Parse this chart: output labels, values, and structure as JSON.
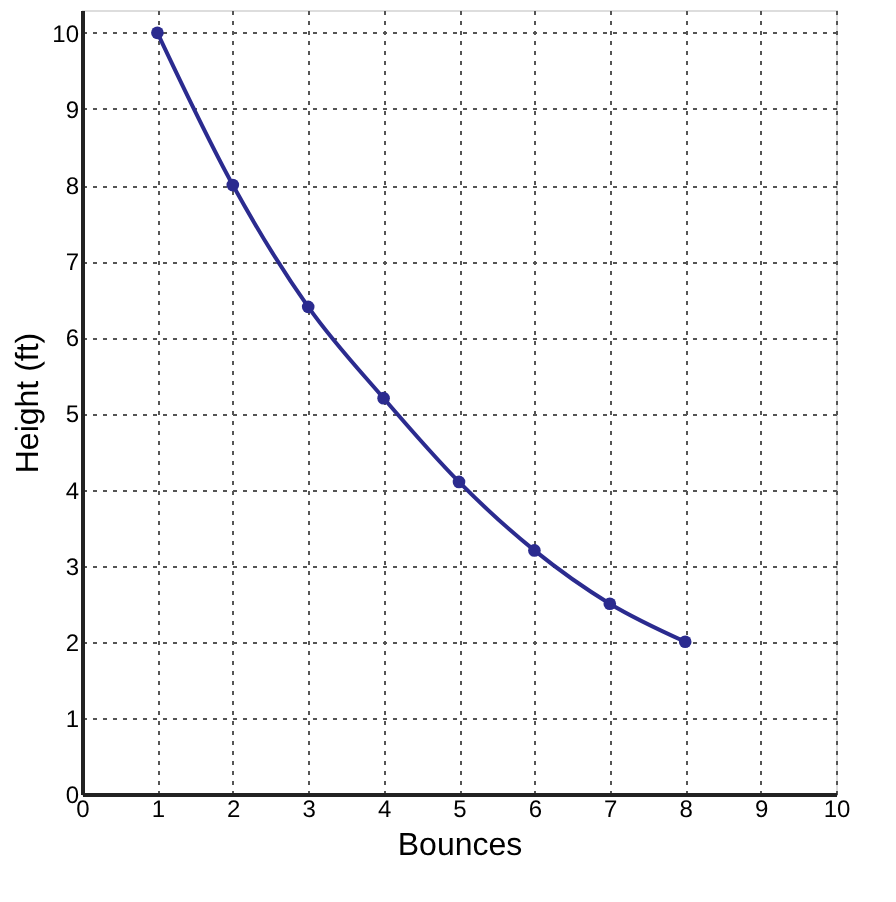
{
  "chart_data": {
    "type": "line",
    "xlabel": "Bounces",
    "ylabel": "Height (ft)",
    "x": [
      1,
      2,
      3,
      4,
      5,
      6,
      7,
      8
    ],
    "series": [
      {
        "color": "#2b2b8f",
        "values": [
          10,
          8,
          6.4,
          5.2,
          4.1,
          3.2,
          2.5,
          2.0
        ]
      }
    ],
    "xlim": [
      0,
      10
    ],
    "ylim": [
      0,
      10.3
    ],
    "xticks": [
      0,
      1,
      2,
      3,
      4,
      5,
      6,
      7,
      8,
      9,
      10
    ],
    "yticks": [
      0,
      1,
      2,
      3,
      4,
      5,
      6,
      7,
      8,
      9,
      10
    ],
    "grid": true,
    "marker": "circle",
    "line_style": "solid"
  }
}
